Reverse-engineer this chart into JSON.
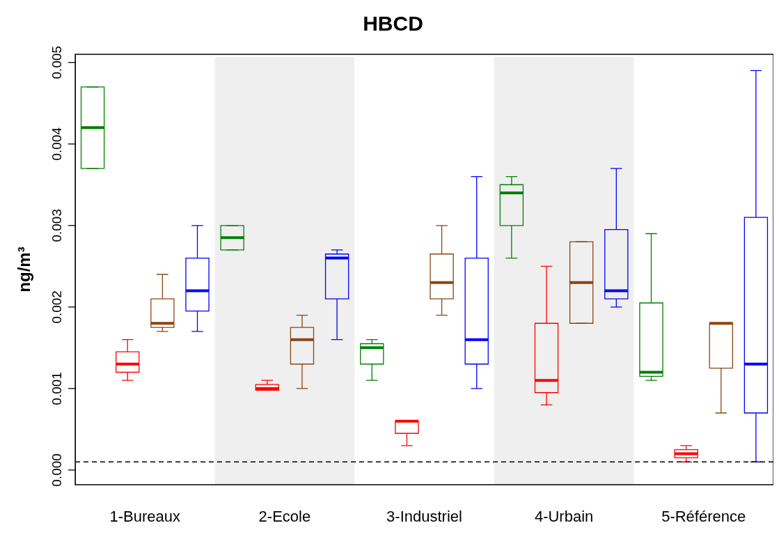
{
  "chart_data": {
    "type": "box",
    "title": "HBCD",
    "ylabel": "ng/m³",
    "categories": [
      "1-Bureaux",
      "2-Ecole",
      "3-Industriel",
      "4-Urbain",
      "5-Référence"
    ],
    "ylim": [
      -0.00018,
      0.0051
    ],
    "yticks": [
      {
        "value": 0,
        "label": "0.000"
      },
      {
        "value": 0.001,
        "label": "0.001"
      },
      {
        "value": 0.002,
        "label": "0.002"
      },
      {
        "value": 0.003,
        "label": "0.003"
      },
      {
        "value": 0.004,
        "label": "0.004"
      },
      {
        "value": 0.005,
        "label": "0.005"
      }
    ],
    "grid": false,
    "legend": false,
    "series": [
      {
        "color": "#008000",
        "boxes": [
          {
            "low": 0.0037,
            "q1": 0.0037,
            "median": 0.0042,
            "q3": 0.0047,
            "high": 0.0047
          },
          {
            "low": 0.0027,
            "q1": 0.0027,
            "median": 0.00285,
            "q3": 0.003,
            "high": 0.003
          },
          {
            "low": 0.0011,
            "q1": 0.0013,
            "median": 0.0015,
            "q3": 0.00155,
            "high": 0.0016
          },
          {
            "low": 0.0026,
            "q1": 0.003,
            "median": 0.0034,
            "q3": 0.0035,
            "high": 0.0036
          },
          {
            "low": 0.0011,
            "q1": 0.00115,
            "median": 0.0012,
            "q3": 0.00205,
            "high": 0.0029
          }
        ]
      },
      {
        "color": "#ff0000",
        "boxes": [
          {
            "low": 0.0011,
            "q1": 0.0012,
            "median": 0.0013,
            "q3": 0.00145,
            "high": 0.0016
          },
          {
            "low": 0.00098,
            "q1": 0.00098,
            "median": 0.001,
            "q3": 0.00105,
            "high": 0.0011
          },
          {
            "low": 0.0003,
            "q1": 0.00045,
            "median": 0.0006,
            "q3": 0.0006,
            "high": 0.0006
          },
          {
            "low": 0.0008,
            "q1": 0.00095,
            "median": 0.0011,
            "q3": 0.0018,
            "high": 0.0025
          },
          {
            "low": 0.0001,
            "q1": 0.00015,
            "median": 0.0002,
            "q3": 0.00025,
            "high": 0.0003
          }
        ]
      },
      {
        "color": "#8b4513",
        "boxes": [
          {
            "low": 0.0017,
            "q1": 0.00175,
            "median": 0.0018,
            "q3": 0.0021,
            "high": 0.0024
          },
          {
            "low": 0.001,
            "q1": 0.0013,
            "median": 0.0016,
            "q3": 0.00175,
            "high": 0.0019
          },
          {
            "low": 0.0019,
            "q1": 0.0021,
            "median": 0.0023,
            "q3": 0.00265,
            "high": 0.003
          },
          {
            "low": 0.0018,
            "q1": 0.0018,
            "median": 0.0023,
            "q3": 0.0028,
            "high": 0.0028
          },
          {
            "low": 0.0007,
            "q1": 0.00125,
            "median": 0.0018,
            "q3": 0.0018,
            "high": 0.0018
          }
        ]
      },
      {
        "color": "#0000ff",
        "boxes": [
          {
            "low": 0.0017,
            "q1": 0.00195,
            "median": 0.0022,
            "q3": 0.0026,
            "high": 0.003
          },
          {
            "low": 0.0016,
            "q1": 0.0021,
            "median": 0.0026,
            "q3": 0.00265,
            "high": 0.0027
          },
          {
            "low": 0.001,
            "q1": 0.0013,
            "median": 0.0016,
            "q3": 0.0026,
            "high": 0.0036
          },
          {
            "low": 0.002,
            "q1": 0.0021,
            "median": 0.0022,
            "q3": 0.00295,
            "high": 0.0037
          },
          {
            "low": 0.0001,
            "q1": 0.0007,
            "median": 0.0013,
            "q3": 0.0031,
            "high": 0.0049
          }
        ]
      }
    ],
    "bands": [
      {
        "axis": "x",
        "from": "2-Ecole",
        "to": "2-Ecole",
        "color": "#efefef"
      },
      {
        "axis": "x",
        "from": "4-Urbain",
        "to": "4-Urbain",
        "color": "#efefef"
      }
    ],
    "ref_lines": [
      {
        "axis": "y",
        "value": 0.0001,
        "color": "#000000",
        "line_style": "dashed"
      }
    ]
  }
}
